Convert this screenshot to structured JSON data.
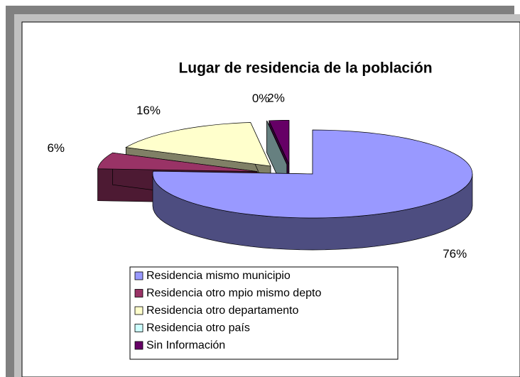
{
  "chart_data": {
    "type": "pie",
    "title": "Lugar de residencia de la población",
    "categories": [
      "Residencia mismo municipio",
      "Residencia otro mpio mismo depto",
      "Residencia otro departamento",
      "Residencia otro país",
      "Sin Información"
    ],
    "values": [
      76,
      6,
      16,
      0,
      2
    ],
    "value_labels": [
      "76%",
      "6%",
      "16%",
      "0%",
      "2%"
    ],
    "colors": [
      "#9999ff",
      "#993366",
      "#ffffcc",
      "#ccffff",
      "#660066"
    ],
    "legend": "bottom"
  }
}
